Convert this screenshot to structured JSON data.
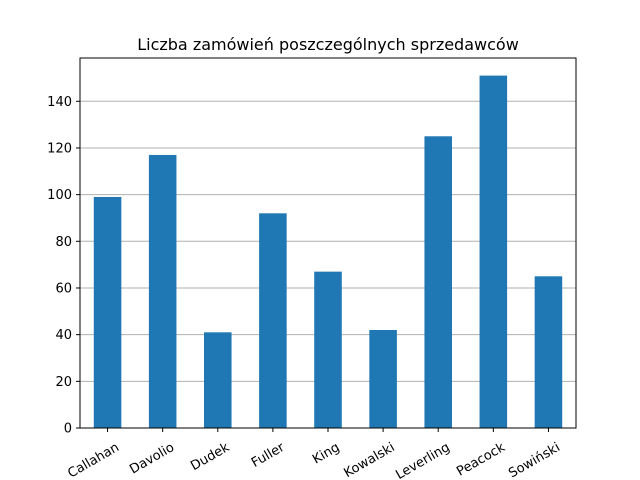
{
  "chart_data": {
    "type": "bar",
    "title": "Liczba zamówień poszczególnych sprzedawców",
    "xlabel": "",
    "ylabel": "",
    "categories": [
      "Callahan",
      "Davolio",
      "Dudek",
      "Fuller",
      "King",
      "Kowalski",
      "Leverling",
      "Peacock",
      "Sowiński"
    ],
    "values": [
      99,
      117,
      41,
      92,
      67,
      42,
      125,
      151,
      65
    ],
    "ylim": [
      0,
      158.55
    ],
    "yticks": [
      0,
      20,
      40,
      60,
      80,
      100,
      120,
      140
    ],
    "grid": "y",
    "legend": "none",
    "bar_color": "#1f77b4",
    "grid_color": "#b0b0b0",
    "tick_label_rotation_deg": -30
  }
}
